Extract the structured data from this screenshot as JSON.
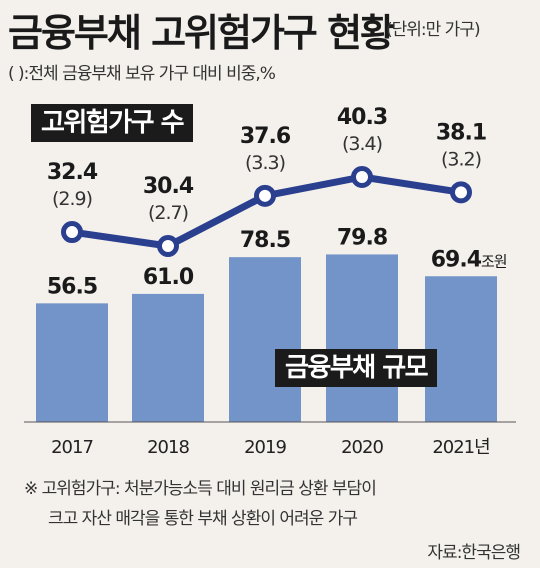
{
  "header": {
    "title": "금융부채 고위험가구 현황",
    "unit": "(단위:만 가구)",
    "subtitle": "(   ):전체 금융부채 보유 가구 대비 비중,%"
  },
  "chart_data": {
    "type": "bar+line",
    "categories": [
      "2017",
      "2018",
      "2019",
      "2020",
      "2021년"
    ],
    "bar_series": {
      "name": "금융부채 규모",
      "values": [
        56.5,
        61.0,
        78.5,
        79.8,
        69.4
      ],
      "value_labels": [
        "56.5",
        "61.0",
        "78.5",
        "79.8",
        "69.4"
      ],
      "unit_suffix": "조원",
      "color": "#7394c8"
    },
    "line_series": {
      "name": "고위험가구 수",
      "values": [
        32.4,
        30.4,
        37.6,
        40.3,
        38.1
      ],
      "value_labels": [
        "32.4",
        "30.4",
        "37.6",
        "40.3",
        "38.1"
      ],
      "shares": [
        "(2.9)",
        "(2.7)",
        "(3.3)",
        "(3.4)",
        "(3.2)"
      ],
      "color": "#2b3f8f"
    }
  },
  "footnote": {
    "line1": "※ 고위험가구: 처분가능소득 대비 원리금 상환 부담이",
    "line2": "크고 자산 매각을 통한 부채 상환이 어려운 가구"
  },
  "source": "자료:한국은행"
}
